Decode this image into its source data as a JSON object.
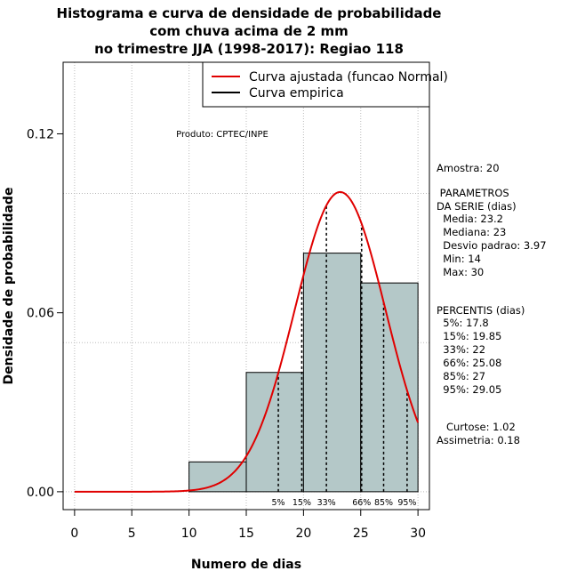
{
  "chart_data": {
    "type": "histogram",
    "title_lines": [
      "Histograma e curva de densidade de probabilidade",
      "com chuva acima de 2 mm",
      "no trimestre JJA (1998-2017): Regiao 118"
    ],
    "xlabel": "Numero de dias",
    "ylabel": "Densidade de probabilidade",
    "xlim": [
      -1,
      31
    ],
    "ylim": [
      -0.006,
      0.144
    ],
    "xticks": [
      0,
      5,
      10,
      15,
      20,
      25,
      30
    ],
    "yticks": [
      0.0,
      0.06,
      0.12
    ],
    "ytick_labels": [
      "0.00",
      "0.06",
      "0.12"
    ],
    "hgrid": [
      0.0,
      0.05,
      0.1
    ],
    "bins": [
      {
        "from": 10,
        "to": 15,
        "density": 0.01
      },
      {
        "from": 15,
        "to": 20,
        "density": 0.04
      },
      {
        "from": 20,
        "to": 25,
        "density": 0.08
      },
      {
        "from": 25,
        "to": 30,
        "density": 0.07
      }
    ],
    "bar_color": "#b4c8c8",
    "curve_color": "#e00000",
    "normal_fit": {
      "mean": 23.2,
      "sd": 3.97,
      "x_from": 0,
      "x_to": 30
    },
    "percentile_marks": [
      {
        "label": "5%",
        "value": 17.8
      },
      {
        "label": "15%",
        "value": 19.85
      },
      {
        "label": "33%",
        "value": 22
      },
      {
        "label": "66%",
        "value": 25.08
      },
      {
        "label": "85%",
        "value": 27
      },
      {
        "label": "95%",
        "value": 29.05
      }
    ],
    "legend": [
      {
        "label": "Curva ajustada (funcao Normal)",
        "color": "#e00000"
      },
      {
        "label": "Curva empirica",
        "color": "#000000"
      }
    ],
    "legend_position": "top-right",
    "annotation": "Produto: CPTEC/INPE"
  },
  "stats": {
    "amostra": "Amostra: 20",
    "params_heading": " PARAMETROS\nDA SERIE (dias)",
    "params": "  Media: 23.2\n  Mediana: 23\n  Desvio padrao: 3.97\n  Min: 14\n  Max: 30",
    "perc_heading": "PERCENTIS (dias)",
    "percs": "  5%: 17.8\n  15%: 19.85\n  33%: 22\n  66%: 25.08\n  85%: 27\n  95%: 29.05",
    "shape": "   Curtose: 1.02\nAssimetria: 0.18"
  }
}
